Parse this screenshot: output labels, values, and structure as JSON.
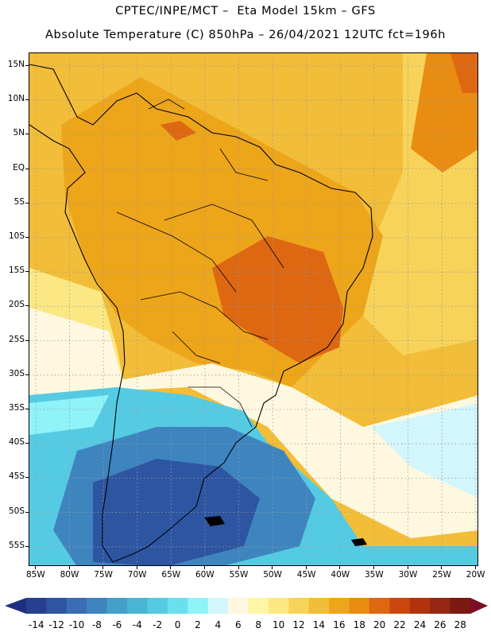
{
  "title_line1": "CPTEC/INPE/MCT –  Eta Model 15km – GFS",
  "title_line2": "Absolute Temperature (C) 850hPa – 26/04/2021 12UTC fct=196h",
  "lat_labels": [
    "15N",
    "10N",
    "5N",
    "EQ",
    "5S",
    "10S",
    "15S",
    "20S",
    "25S",
    "30S",
    "35S",
    "40S",
    "45S",
    "50S",
    "55S"
  ],
  "lon_labels": [
    "85W",
    "80W",
    "75W",
    "70W",
    "65W",
    "60W",
    "55W",
    "50W",
    "45W",
    "40W",
    "35W",
    "30W",
    "25W",
    "20W"
  ],
  "colorbar": {
    "labels": [
      "-14",
      "-12",
      "-10",
      "-8",
      "-6",
      "-4",
      "-2",
      "0",
      "2",
      "4",
      "6",
      "8",
      "10",
      "12",
      "14",
      "16",
      "18",
      "20",
      "22",
      "24",
      "26",
      "28"
    ],
    "colors": [
      "#26408f",
      "#2d55a2",
      "#3a6db4",
      "#3e85c0",
      "#44a0c8",
      "#49b5d2",
      "#55cbe3",
      "#6ae0ef",
      "#8ff3f8",
      "#d2f6fb",
      "#fff8e0",
      "#fef6a5",
      "#fce883",
      "#f8d35a",
      "#f2bd38",
      "#eda51a",
      "#e88c12",
      "#de6712",
      "#cd4610",
      "#b1320d",
      "#972712",
      "#7a1811"
    ],
    "low_arrow_color": "#1e2f80",
    "high_arrow_color": "#7c0f25"
  },
  "colors": {
    "ocean_cold": "#2d55a2",
    "ocean_cyan": "#55cbe3",
    "mid_cream": "#fff8e0",
    "land_warm": "#eda51a",
    "land_hot": "#de6712",
    "coastline": "#000000",
    "grid": "#9a9a9a"
  }
}
